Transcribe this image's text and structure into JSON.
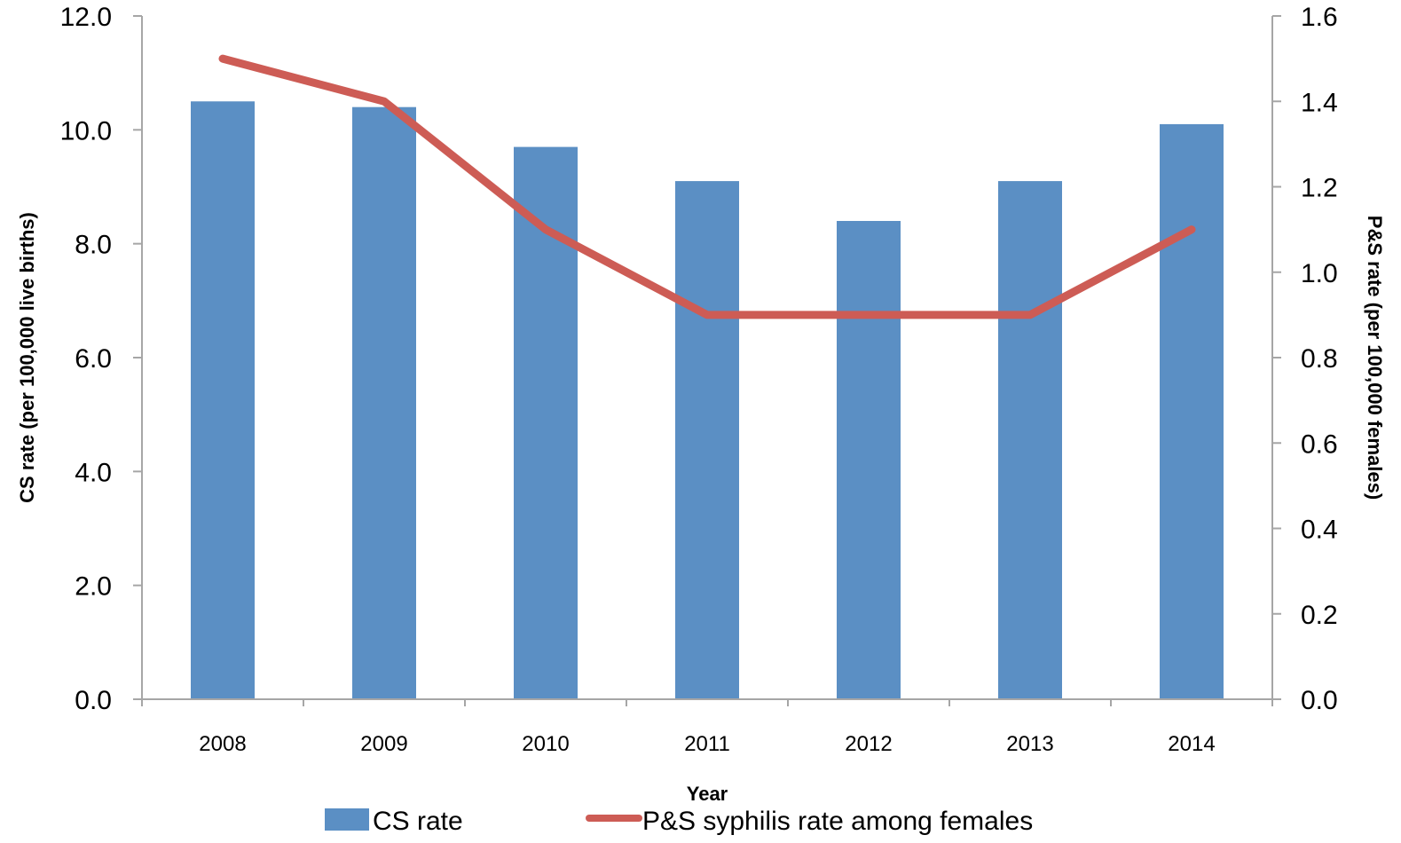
{
  "chart_data": {
    "type": "bar",
    "categories": [
      "2008",
      "2009",
      "2010",
      "2011",
      "2012",
      "2013",
      "2014"
    ],
    "series": [
      {
        "name": "CS rate",
        "type": "bar",
        "axis": "left",
        "values": [
          10.5,
          10.4,
          9.7,
          9.1,
          8.4,
          9.1,
          10.1
        ]
      },
      {
        "name": "P&S syphilis rate among females",
        "type": "line",
        "axis": "right",
        "values": [
          1.5,
          1.4,
          1.1,
          0.9,
          0.9,
          0.9,
          1.1
        ]
      }
    ],
    "xlabel": "Year",
    "ylabel": "CS rate (per 100,000 live births)",
    "y2label": "P&S rate (per 100,000 females)",
    "ylim": [
      0,
      12
    ],
    "y2lim": [
      0,
      1.6
    ],
    "yticks": [
      "0.0",
      "2.0",
      "4.0",
      "6.0",
      "8.0",
      "10.0",
      "12.0"
    ],
    "y2ticks": [
      "0.0",
      "0.2",
      "0.4",
      "0.6",
      "0.8",
      "1.0",
      "1.2",
      "1.4",
      "1.6"
    ],
    "legend_position": "bottom",
    "colors": {
      "bar": "#5b8fc4",
      "line": "#cd5c55",
      "axis": "#a6a6a6"
    },
    "grid": false
  }
}
